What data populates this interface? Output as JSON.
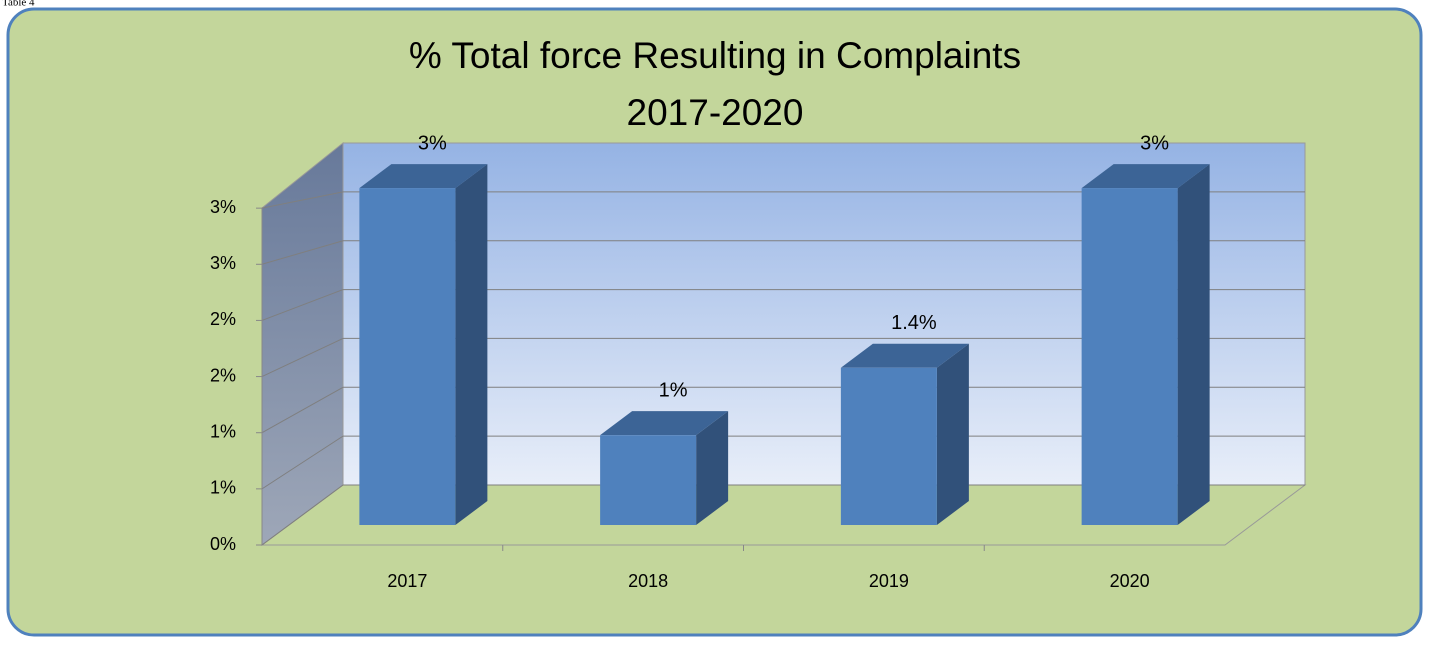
{
  "caption": "Table 4",
  "chart_data": {
    "type": "bar3d",
    "title": [
      "% Total force Resulting in Complaints",
      "2017-2020"
    ],
    "categories": [
      "2017",
      "2018",
      "2019",
      "2020"
    ],
    "values": [
      3.0,
      0.8,
      1.4,
      3.0
    ],
    "value_labels": [
      "3%",
      "1%",
      "1.4%",
      "3%"
    ],
    "color": "#4f81bd",
    "ylim": [
      0,
      3.5
    ],
    "yticks": [
      {
        "value": 0,
        "label": "0%"
      },
      {
        "value": 0.5,
        "label": "1%"
      },
      {
        "value": 1,
        "label": "1%"
      },
      {
        "value": 1.5,
        "label": "2%"
      },
      {
        "value": 2,
        "label": "2%"
      },
      {
        "value": 2.5,
        "label": "3%"
      },
      {
        "value": 3,
        "label": "3%"
      }
    ],
    "grid": true
  }
}
